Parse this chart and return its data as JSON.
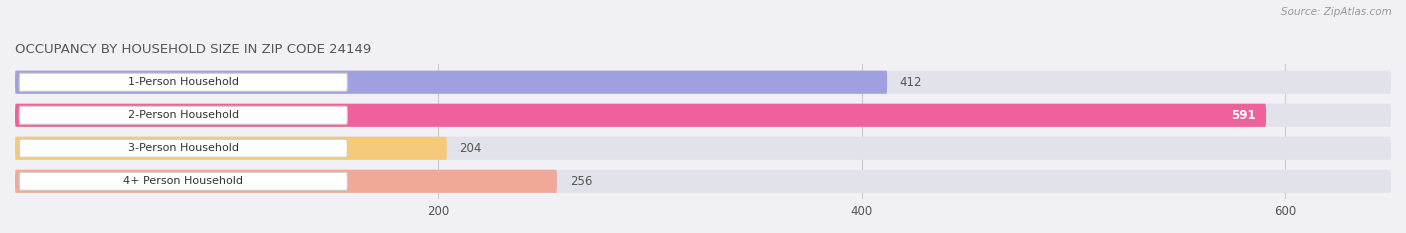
{
  "title": "OCCUPANCY BY HOUSEHOLD SIZE IN ZIP CODE 24149",
  "source": "Source: ZipAtlas.com",
  "categories": [
    "1-Person Household",
    "2-Person Household",
    "3-Person Household",
    "4+ Person Household"
  ],
  "values": [
    412,
    591,
    204,
    256
  ],
  "bar_colors": [
    "#a0a0e0",
    "#f0609a",
    "#f5c97a",
    "#f0a898"
  ],
  "label_colors": [
    "#333333",
    "#ffffff",
    "#333333",
    "#333333"
  ],
  "background_color": "#f0f0f5",
  "bar_bg_color": "#e2e2ea",
  "xlim": [
    0,
    650
  ],
  "xticks": [
    200,
    400,
    600
  ],
  "figsize": [
    14.06,
    2.33
  ],
  "dpi": 100
}
